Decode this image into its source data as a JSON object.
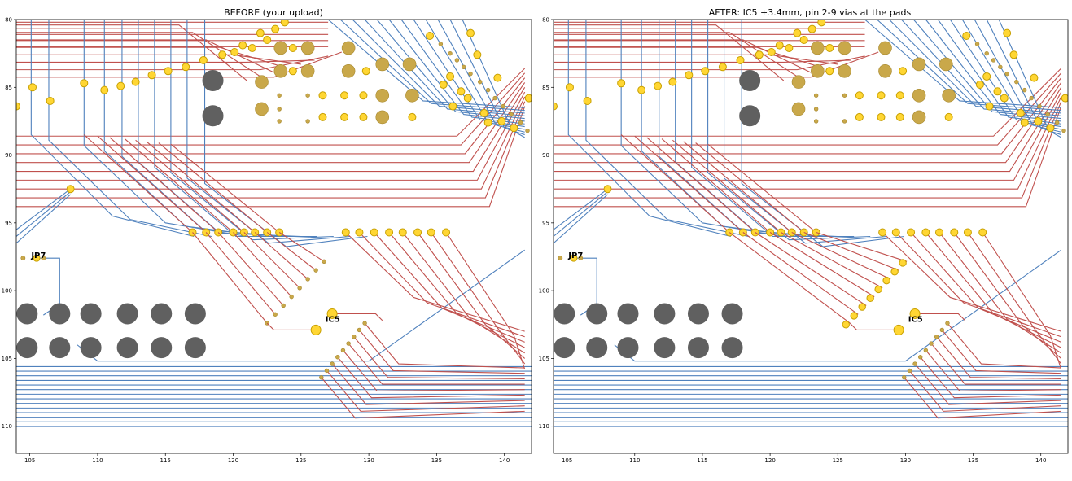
{
  "colors": {
    "red_trace": "#c0504d",
    "blue_trace": "#4f81bd",
    "via_fill": "#ffd633",
    "via_stroke": "#c8a000",
    "pad_fill": "#c9a84a",
    "hole_fill": "#606060"
  },
  "chart_data": [
    {
      "type": "scatter",
      "title": "BEFORE (your upload)",
      "xlabel": "",
      "ylabel": "",
      "xlim": [
        104,
        142
      ],
      "ylim": [
        112,
        80
      ],
      "xticks": [
        "105",
        "110",
        "115",
        "120",
        "125",
        "130",
        "135",
        "140"
      ],
      "yticks": [
        "80",
        "85",
        "90",
        "95",
        "100",
        "105",
        "110"
      ],
      "grid": false,
      "ic5_shift_mm": 0,
      "labels": [
        {
          "text": "JP7",
          "x": 105.1,
          "y": 97.6
        },
        {
          "text": "IC5",
          "x": 126.8,
          "y": 102.3
        }
      ]
    },
    {
      "type": "scatter",
      "title": "AFTER: IC5 +3.4mm, pin 2-9 vias at the pads",
      "xlabel": "",
      "ylabel": "",
      "xlim": [
        104,
        142
      ],
      "ylim": [
        112,
        80
      ],
      "xticks": [
        "105",
        "110",
        "115",
        "120",
        "125",
        "130",
        "135",
        "140"
      ],
      "yticks": [
        "80",
        "85",
        "90",
        "95",
        "100",
        "105",
        "110"
      ],
      "grid": false,
      "ic5_shift_mm": 3.4,
      "labels": [
        {
          "text": "JP7",
          "x": 105.1,
          "y": 97.6
        },
        {
          "text": "IC5",
          "x": 130.2,
          "y": 102.3
        }
      ]
    }
  ]
}
